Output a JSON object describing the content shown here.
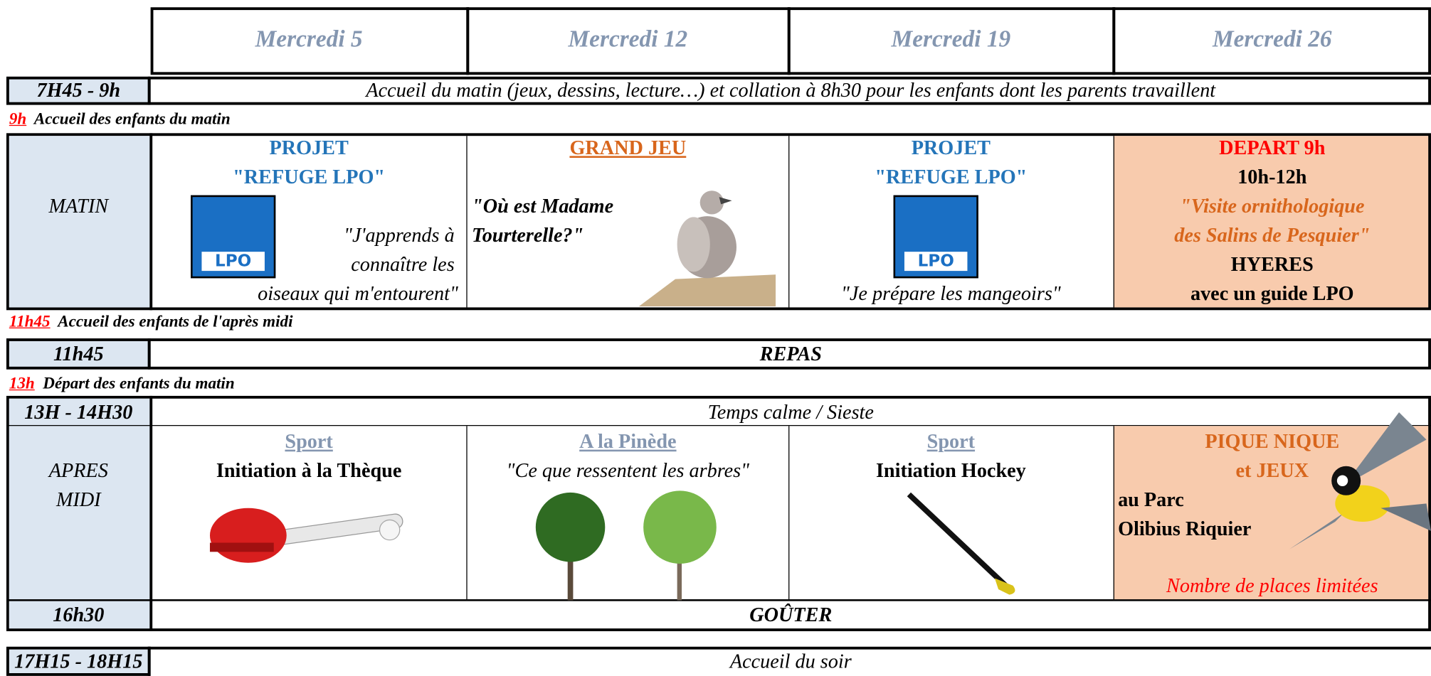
{
  "header": {
    "days": [
      "Mercredi 5",
      "Mercredi 12",
      "Mercredi 19",
      "Mercredi 26"
    ]
  },
  "morning_welcome": {
    "time": "7H45 - 9h",
    "text": "Accueil du matin (jeux, dessins, lecture…) et collation à 8h30 pour les enfants dont les parents travaillent"
  },
  "notes": [
    {
      "time": "9h",
      "text": "Accueil des enfants du matin"
    },
    {
      "time": "11h45",
      "text": "Accueil des enfants de l'après midi"
    },
    {
      "time": "13h",
      "text": "Départ des enfants du matin"
    }
  ],
  "matin": {
    "label": "MATIN",
    "cells": [
      {
        "title_lines": [
          "PROJET",
          "\"REFUGE LPO\""
        ],
        "logo": "LPO",
        "text_lines": [
          "\"J'apprends à",
          "connaître les",
          "oiseaux qui m'entourent\""
        ]
      },
      {
        "title": "GRAND JEU",
        "text_lines": [
          "\"Où est Madame",
          "Tourterelle?\""
        ]
      },
      {
        "title_lines": [
          "PROJET",
          "\"REFUGE LPO\""
        ],
        "logo": "LPO",
        "text": "\"Je prépare les mangeoirs\""
      },
      {
        "lines": [
          "DEPART 9h",
          "10h-12h",
          "\"Visite ornithologique",
          "des Salins de Pesquier\"",
          "HYERES",
          "avec un guide LPO"
        ]
      }
    ]
  },
  "lunch": {
    "time": "11h45",
    "text": "REPAS"
  },
  "rest": {
    "time": "13H - 14H30",
    "text": "Temps calme / Sieste"
  },
  "apres_midi": {
    "label_lines": [
      "APRES",
      "MIDI"
    ],
    "cells": [
      {
        "category": "Sport",
        "activity": "Initiation à la Thèque"
      },
      {
        "category": "A la Pinède",
        "activity": "\"Ce que ressentent les arbres\""
      },
      {
        "category": "Sport ",
        "activity": "Initiation Hockey"
      },
      {
        "title_lines": [
          "PIQUE NIQUE",
          "et JEUX"
        ],
        "place_lines": [
          "au Parc",
          "Olibius Riquier"
        ],
        "note": "Nombre de places limitées"
      }
    ]
  },
  "snack": {
    "time": "16h30",
    "text": "GOÛTER"
  },
  "evening": {
    "time": "17H15 - 18H15",
    "text": "Accueil du soir"
  }
}
